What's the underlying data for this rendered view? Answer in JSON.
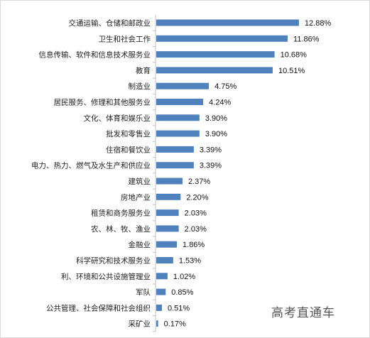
{
  "chart_data": {
    "type": "bar",
    "orientation": "horizontal",
    "categories": [
      "交通运输、仓储和邮政业",
      "卫生和社会工作",
      "信息传输、软件和信息技术服务业",
      "教育",
      "制造业",
      "居民服务、修理和其他服务业",
      "文化、体育和娱乐业",
      "批发和零售业",
      "住宿和餐饮业",
      "电力、热力、燃气及水生产和供应业",
      "建筑业",
      "房地产业",
      "租赁和商务服务业",
      "农、林、牧、渔业",
      "金融业",
      "科学研究和技术服务业",
      "利、环境和公共设施管理业",
      "军队",
      "公共管理、社会保障和社会组织",
      "采矿业"
    ],
    "values": [
      12.88,
      11.86,
      10.68,
      10.51,
      4.75,
      4.24,
      3.9,
      3.9,
      3.39,
      3.39,
      2.37,
      2.2,
      2.03,
      2.03,
      1.86,
      1.53,
      1.02,
      0.85,
      0.51,
      0.17
    ],
    "value_labels": [
      "12.88%",
      "11.86%",
      "10.68%",
      "10.51%",
      "4.75%",
      "4.24%",
      "3.90%",
      "3.90%",
      "3.39%",
      "3.39%",
      "2.37%",
      "2.20%",
      "2.03%",
      "2.03%",
      "1.86%",
      "1.53%",
      "1.02%",
      "0.85%",
      "0.51%",
      "0.17%"
    ],
    "unit": "%",
    "xlim": [
      0,
      14
    ],
    "grid": false,
    "legend": "none",
    "title": "",
    "xlabel": "",
    "ylabel": "",
    "bar_color": "#4f81bd"
  },
  "watermark": "高考直通车",
  "colors": {
    "bar": "#4f81bd",
    "axis": "#bfbfbf",
    "border": "#d9d9d9"
  }
}
